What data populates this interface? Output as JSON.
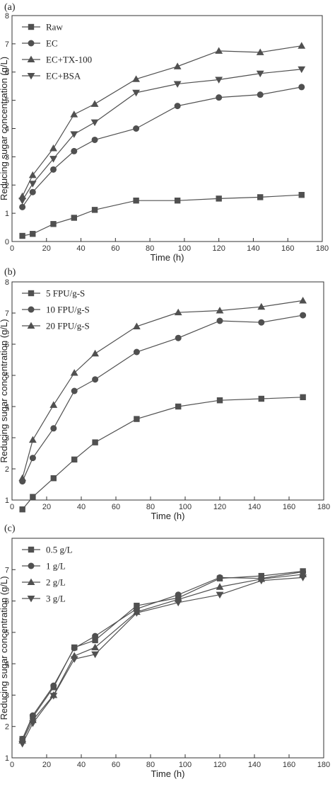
{
  "chart_data": [
    {
      "panel_label": "(a)",
      "type": "line",
      "xlabel": "Time (h)",
      "ylabel": "Reducing sugar concentration (g/L)",
      "xlim": [
        0,
        180
      ],
      "ylim": [
        0,
        8
      ],
      "xticks": [
        0,
        20,
        40,
        60,
        80,
        100,
        120,
        140,
        160,
        180
      ],
      "yticks": [
        0,
        1,
        2,
        3,
        4,
        5,
        6,
        7,
        8
      ],
      "x_tick_labels": [
        "0",
        "20",
        "40",
        "60",
        "80",
        "100",
        "120",
        "140",
        "160",
        "180"
      ],
      "y_tick_labels": [
        "0",
        "1",
        "2",
        "3",
        "4",
        "5",
        "6",
        "7",
        "8"
      ],
      "grid": false,
      "legend_position": "top-left",
      "x": [
        6,
        12,
        24,
        36,
        48,
        72,
        96,
        120,
        144,
        168
      ],
      "series": [
        {
          "name": "Raw",
          "marker": "square",
          "values": [
            0.2,
            0.27,
            0.62,
            0.84,
            1.12,
            1.45,
            1.45,
            1.52,
            1.57,
            1.65
          ]
        },
        {
          "name": "EC",
          "marker": "circle",
          "values": [
            1.22,
            1.75,
            2.55,
            3.2,
            3.6,
            4.0,
            4.8,
            5.1,
            5.2,
            5.47
          ]
        },
        {
          "name": "EC+TX-100",
          "marker": "triangle-up",
          "values": [
            1.6,
            2.35,
            3.3,
            4.5,
            4.87,
            5.75,
            6.2,
            6.75,
            6.7,
            6.93
          ]
        },
        {
          "name": "EC+BSA",
          "marker": "triangle-down",
          "values": [
            1.45,
            2.05,
            2.93,
            3.8,
            4.22,
            5.27,
            5.58,
            5.73,
            5.95,
            6.1
          ]
        }
      ]
    },
    {
      "panel_label": "(b)",
      "type": "line",
      "xlabel": "Time (h)",
      "ylabel": "Reducing sugar concentration (g/L)",
      "xlim": [
        0,
        180
      ],
      "ylim": [
        1,
        8
      ],
      "xticks": [
        0,
        20,
        40,
        60,
        80,
        100,
        120,
        140,
        160,
        180
      ],
      "yticks": [
        1,
        2,
        3,
        4,
        5,
        6,
        7,
        8
      ],
      "x_tick_labels": [
        "0",
        "20",
        "40",
        "60",
        "80",
        "100",
        "120",
        "140",
        "160",
        "180"
      ],
      "y_tick_labels": [
        "1",
        "2",
        "3",
        "4",
        "5",
        "6",
        "7",
        "8"
      ],
      "grid": false,
      "legend_position": "top-left",
      "x": [
        6,
        12,
        24,
        36,
        48,
        72,
        96,
        120,
        144,
        168
      ],
      "series": [
        {
          "name": "5 FPU/g-S",
          "marker": "square",
          "values": [
            0.7,
            1.1,
            1.7,
            2.3,
            2.85,
            3.6,
            4.0,
            4.2,
            4.25,
            4.3
          ]
        },
        {
          "name": "10 FPU/g-S",
          "marker": "circle",
          "values": [
            1.6,
            2.35,
            3.3,
            4.5,
            4.87,
            5.75,
            6.2,
            6.75,
            6.7,
            6.93
          ]
        },
        {
          "name": "20 FPU/g-S",
          "marker": "triangle-up",
          "values": [
            1.7,
            2.93,
            4.05,
            5.08,
            5.7,
            6.57,
            7.02,
            7.08,
            7.2,
            7.4
          ]
        }
      ]
    },
    {
      "panel_label": "(c)",
      "type": "line",
      "xlabel": "Time (h)",
      "ylabel": "Reducing sugar concentration (g/L)",
      "xlim": [
        0,
        180
      ],
      "ylim": [
        1,
        8
      ],
      "xticks": [
        0,
        20,
        40,
        60,
        80,
        100,
        120,
        140,
        160,
        180
      ],
      "yticks": [
        1,
        2,
        3,
        4,
        5,
        6,
        7
      ],
      "x_tick_labels": [
        "0",
        "20",
        "40",
        "60",
        "80",
        "100",
        "120",
        "140",
        "160",
        "180"
      ],
      "y_tick_labels": [
        "1",
        "2",
        "3",
        "4",
        "5",
        "6",
        "7"
      ],
      "grid": false,
      "legend_position": "top-left",
      "x": [
        6,
        12,
        24,
        36,
        48,
        72,
        96,
        120,
        144,
        168
      ],
      "series": [
        {
          "name": "0.5 g/L",
          "marker": "square",
          "values": [
            1.6,
            2.3,
            3.25,
            4.52,
            4.75,
            5.85,
            6.1,
            6.72,
            6.8,
            6.95
          ]
        },
        {
          "name": "1 g/L",
          "marker": "circle",
          "values": [
            1.6,
            2.35,
            3.3,
            4.5,
            4.88,
            5.75,
            6.2,
            6.75,
            6.72,
            6.93
          ]
        },
        {
          "name": "2 g/L",
          "marker": "triangle-up",
          "values": [
            1.55,
            2.2,
            3.0,
            4.25,
            4.52,
            5.65,
            6.05,
            6.45,
            6.7,
            6.85
          ]
        },
        {
          "name": "3 g/L",
          "marker": "triangle-down",
          "values": [
            1.45,
            2.1,
            2.98,
            4.15,
            4.3,
            5.62,
            5.95,
            6.2,
            6.65,
            6.75
          ]
        }
      ]
    }
  ]
}
